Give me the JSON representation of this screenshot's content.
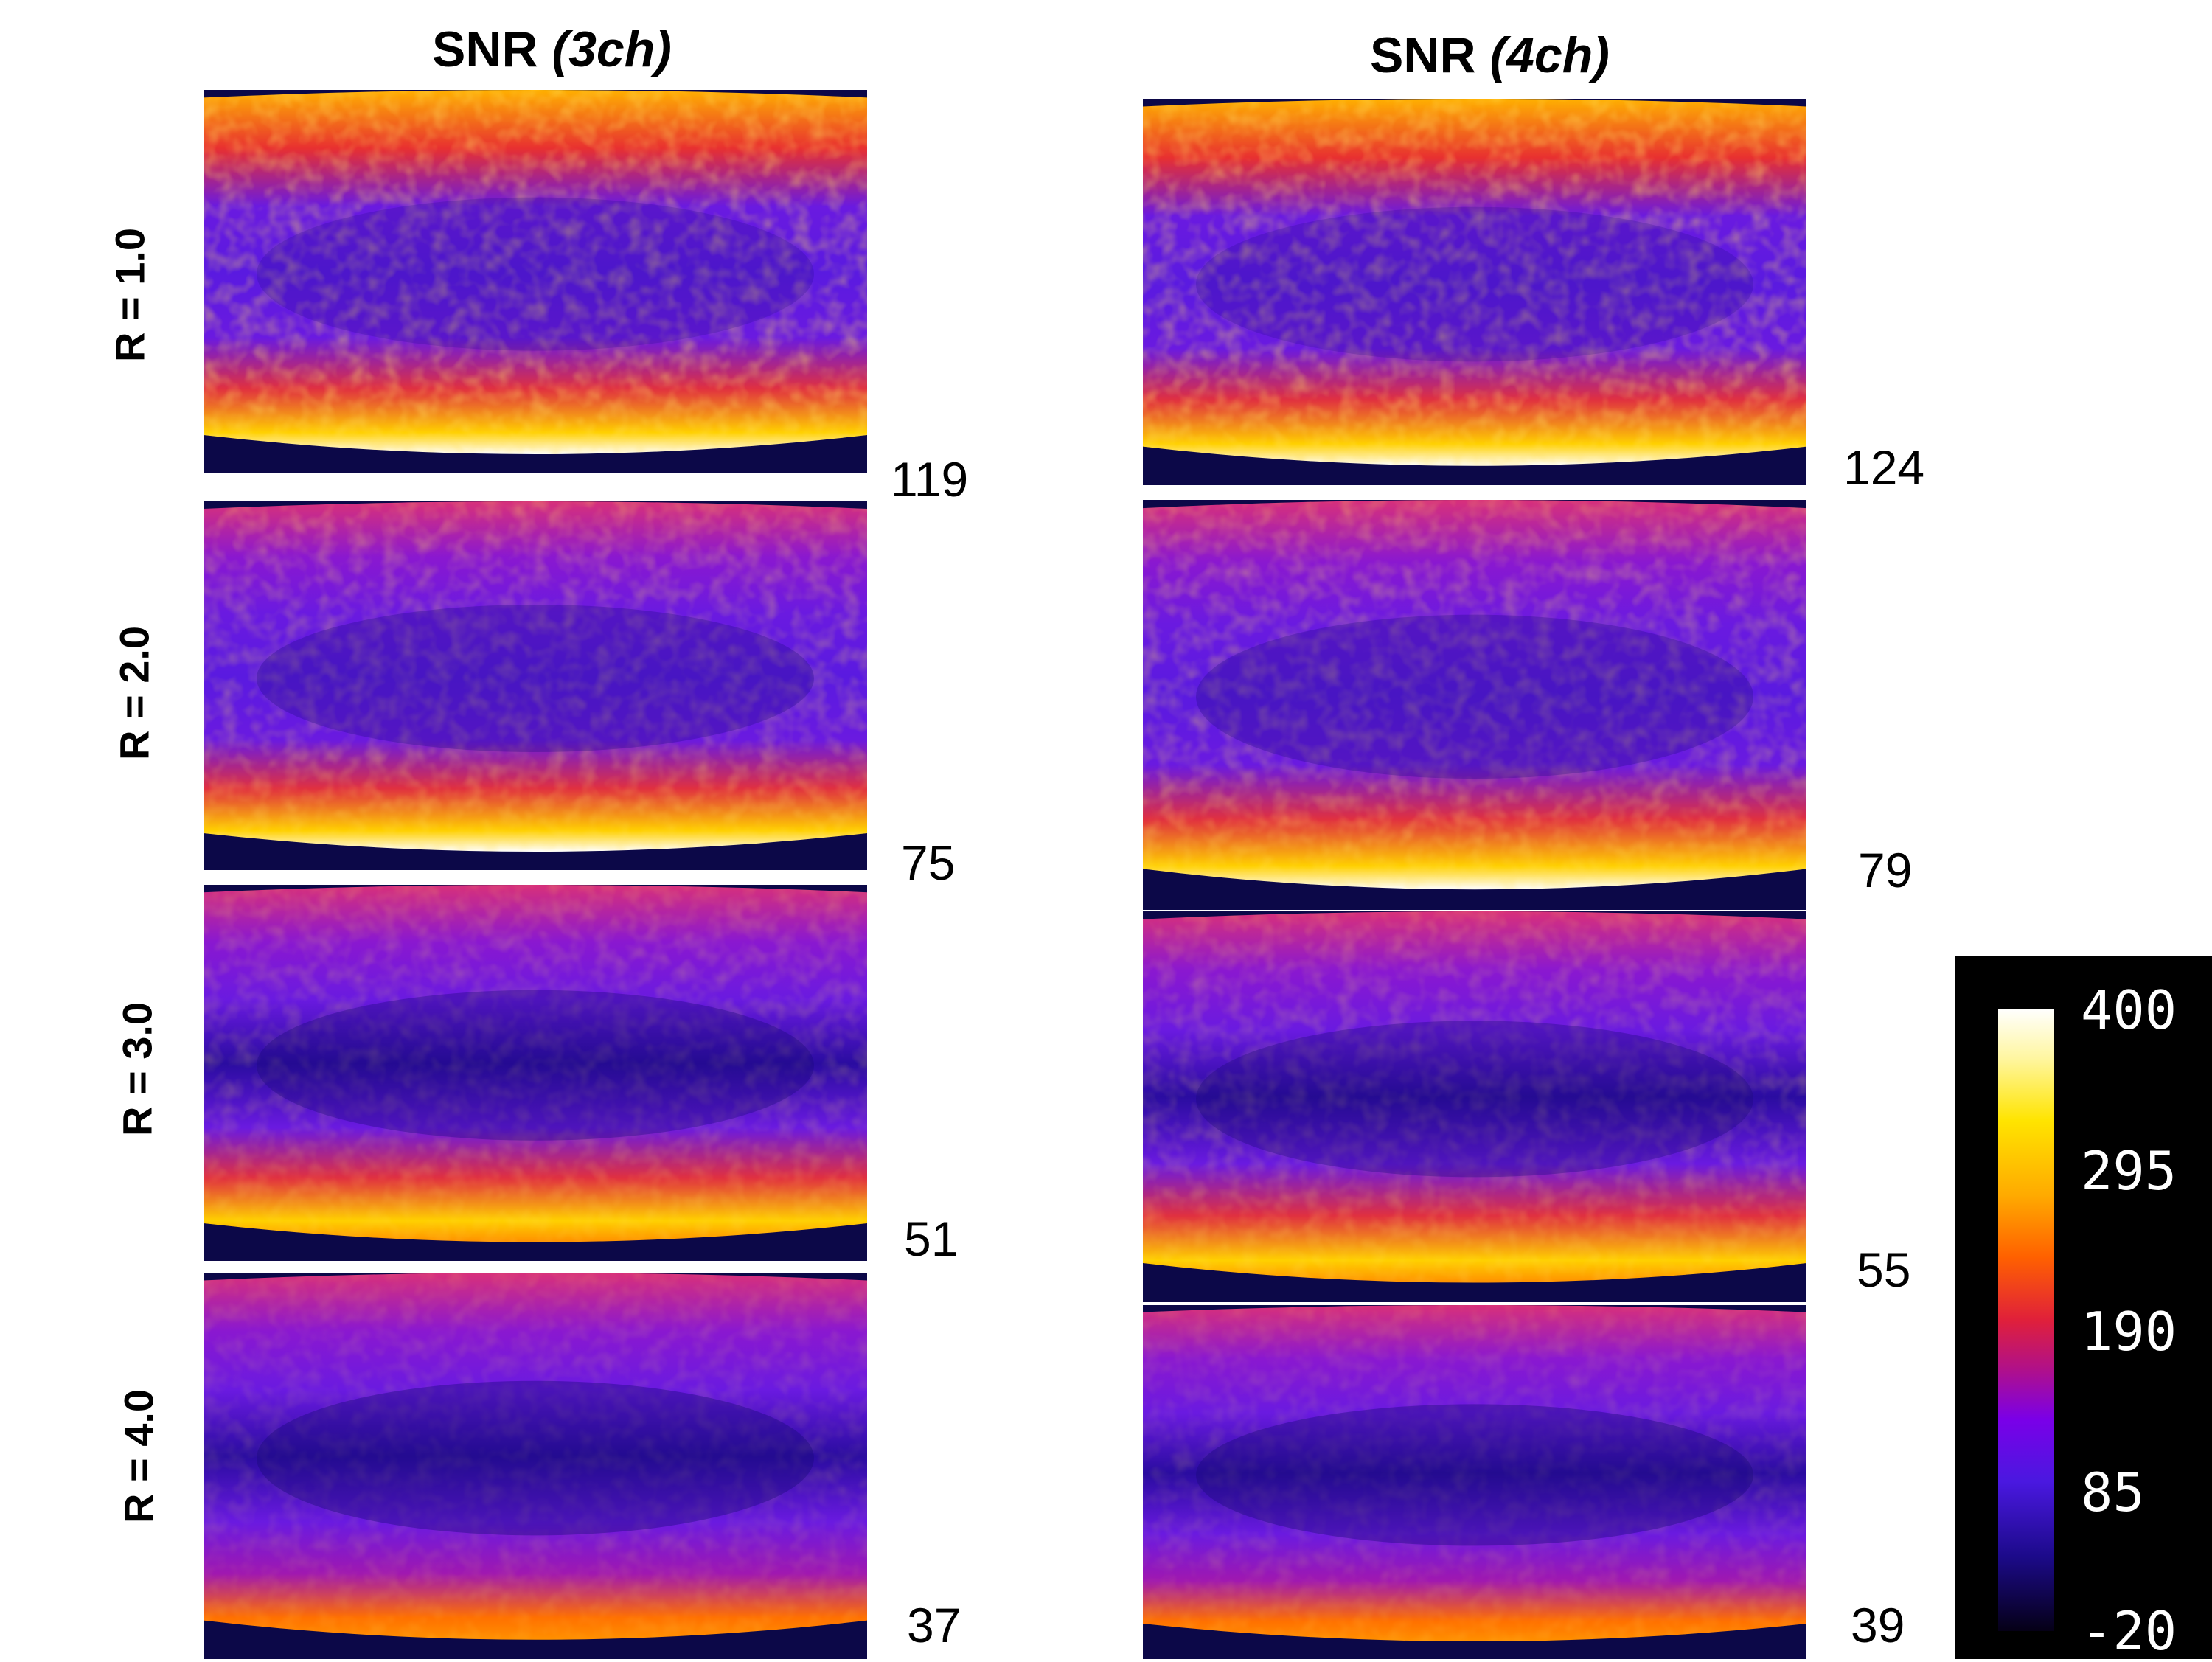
{
  "columns": [
    {
      "title_main": "SNR ",
      "title_sub": "(3ch)"
    },
    {
      "title_main": "SNR ",
      "title_sub": "(4ch)"
    }
  ],
  "row_labels": [
    "R = 1.0",
    "R = 2.0",
    "R = 3.0",
    "R = 4.0"
  ],
  "mean_snr": {
    "col_3ch": [
      "119",
      "75",
      "51",
      "37"
    ],
    "col_4ch": [
      "124",
      "79",
      "55",
      "39"
    ]
  },
  "colorbar": {
    "ticks": [
      "400",
      "295",
      "190",
      "85",
      "-20"
    ],
    "colors": [
      "#ffffff",
      "#ffe400",
      "#ff6000",
      "#7a00e8",
      "#050016"
    ]
  },
  "panel_intensity": {
    "col_3ch": [
      1.0,
      0.72,
      0.5,
      0.34
    ],
    "col_4ch": [
      1.0,
      0.75,
      0.55,
      0.36
    ]
  }
}
